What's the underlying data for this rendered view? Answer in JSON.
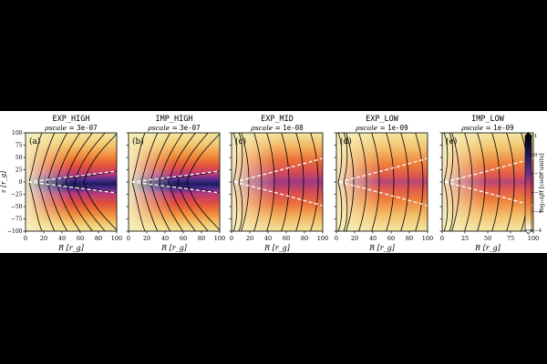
{
  "chart_data": {
    "type": "heatmap",
    "colormap": "CMRmap_r",
    "colorbar": {
      "label": "log₁₀(ρ) [code units]",
      "min": -4,
      "max": 1,
      "ticks": [
        1,
        0,
        -1,
        -2,
        -3,
        -4
      ],
      "tick_labels": [
        "1",
        "0",
        "−1",
        "−2",
        "−3",
        "−4"
      ]
    },
    "shared": {
      "xlabel": "R [r_g]",
      "ylabel": "z [r_g]",
      "ylim": [
        -100,
        100
      ],
      "xlim": [
        0,
        100
      ],
      "yticks": [
        100,
        75,
        50,
        25,
        0,
        -25,
        -50,
        -75,
        -100
      ],
      "ytick_labels": [
        "100",
        "75",
        "50",
        "25",
        "0",
        "−25",
        "−50",
        "−75",
        "−100"
      ]
    },
    "panels": [
      {
        "id": "a",
        "tag": "(a)",
        "title": "EXP_HIGH",
        "rho_label": "ρscale = ",
        "rho_scale": "3e-07",
        "xticks": [
          0,
          20,
          40,
          60,
          80,
          100
        ],
        "xtick_labels": [
          "0",
          "20",
          "40",
          "60",
          "80",
          "100"
        ]
      },
      {
        "id": "b",
        "tag": "(b)",
        "title": "IMP_HIGH",
        "rho_label": "ρscale = ",
        "rho_scale": "3e-07",
        "xticks": [
          0,
          20,
          40,
          60,
          80,
          100
        ],
        "xtick_labels": [
          "0",
          "20",
          "40",
          "60",
          "80",
          "100"
        ]
      },
      {
        "id": "c",
        "tag": "(c)",
        "title": "EXP_MID",
        "rho_label": "ρscale = ",
        "rho_scale": "1e-08",
        "xticks": [
          0,
          20,
          40,
          60,
          80,
          100
        ],
        "xtick_labels": [
          "0",
          "20",
          "40",
          "60",
          "80",
          "100"
        ]
      },
      {
        "id": "d",
        "tag": "(d)",
        "title": "EXP_LOW",
        "rho_label": "ρscale = ",
        "rho_scale": "1e-09",
        "xticks": [
          0,
          20,
          40,
          60,
          80,
          100
        ],
        "xtick_labels": [
          "0",
          "20",
          "40",
          "60",
          "80",
          "100"
        ]
      },
      {
        "id": "e",
        "tag": "(e)",
        "title": "IMP_LOW",
        "rho_label": "ρscale = ",
        "rho_scale": "1e-09",
        "xticks": [
          0,
          25,
          50,
          75,
          100
        ],
        "xtick_labels": [
          "0",
          "25",
          "50",
          "75",
          "100"
        ]
      }
    ]
  }
}
